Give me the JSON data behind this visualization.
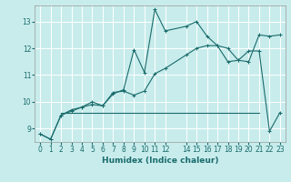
{
  "xlabel": "Humidex (Indice chaleur)",
  "bg_color": "#c8ecec",
  "grid_color": "#ffffff",
  "line_color": "#1a6b6b",
  "xlim": [
    -0.5,
    23.5
  ],
  "ylim": [
    8.5,
    13.6
  ],
  "yticks": [
    9,
    10,
    11,
    12,
    13
  ],
  "xtick_positions": [
    0,
    1,
    2,
    3,
    4,
    5,
    6,
    7,
    8,
    9,
    10,
    11,
    12,
    14,
    15,
    16,
    17,
    18,
    19,
    20,
    21,
    22,
    23
  ],
  "xtick_labels": [
    "0",
    "1",
    "2",
    "3",
    "4",
    "5",
    "6",
    "7",
    "8",
    "9",
    "10",
    "11",
    "12",
    "14",
    "15",
    "16",
    "17",
    "18",
    "19",
    "20",
    "21",
    "22",
    "23"
  ],
  "line1_x": [
    0,
    1,
    2,
    3,
    4,
    5,
    6,
    7,
    8,
    9,
    10,
    11,
    12,
    14,
    15,
    16,
    17,
    18,
    19,
    20,
    21,
    22,
    23
  ],
  "line1_y": [
    8.8,
    8.6,
    9.5,
    9.7,
    9.8,
    9.9,
    9.85,
    10.3,
    10.45,
    11.95,
    11.1,
    13.45,
    12.65,
    12.82,
    13.0,
    12.45,
    12.1,
    12.0,
    11.55,
    11.9,
    11.9,
    8.9,
    9.6
  ],
  "line2_x": [
    0,
    1,
    2,
    3,
    4,
    5,
    6,
    7,
    8,
    9,
    10,
    11,
    12,
    14,
    15,
    16,
    17,
    18,
    19,
    20,
    21,
    22,
    23
  ],
  "line2_y": [
    8.8,
    8.6,
    9.5,
    9.65,
    9.8,
    10.0,
    9.85,
    10.35,
    10.4,
    10.25,
    10.4,
    11.05,
    11.25,
    11.75,
    12.0,
    12.1,
    12.1,
    11.5,
    11.55,
    11.5,
    12.5,
    12.45,
    12.5
  ],
  "line3_x": [
    2,
    3,
    4,
    5,
    6,
    7,
    8,
    9,
    10,
    11,
    12,
    21
  ],
  "line3_y": [
    9.6,
    9.6,
    9.6,
    9.6,
    9.6,
    9.6,
    9.6,
    9.6,
    9.6,
    9.6,
    9.6,
    9.6
  ],
  "fontsize_label": 6.5,
  "fontsize_tick": 5.5
}
